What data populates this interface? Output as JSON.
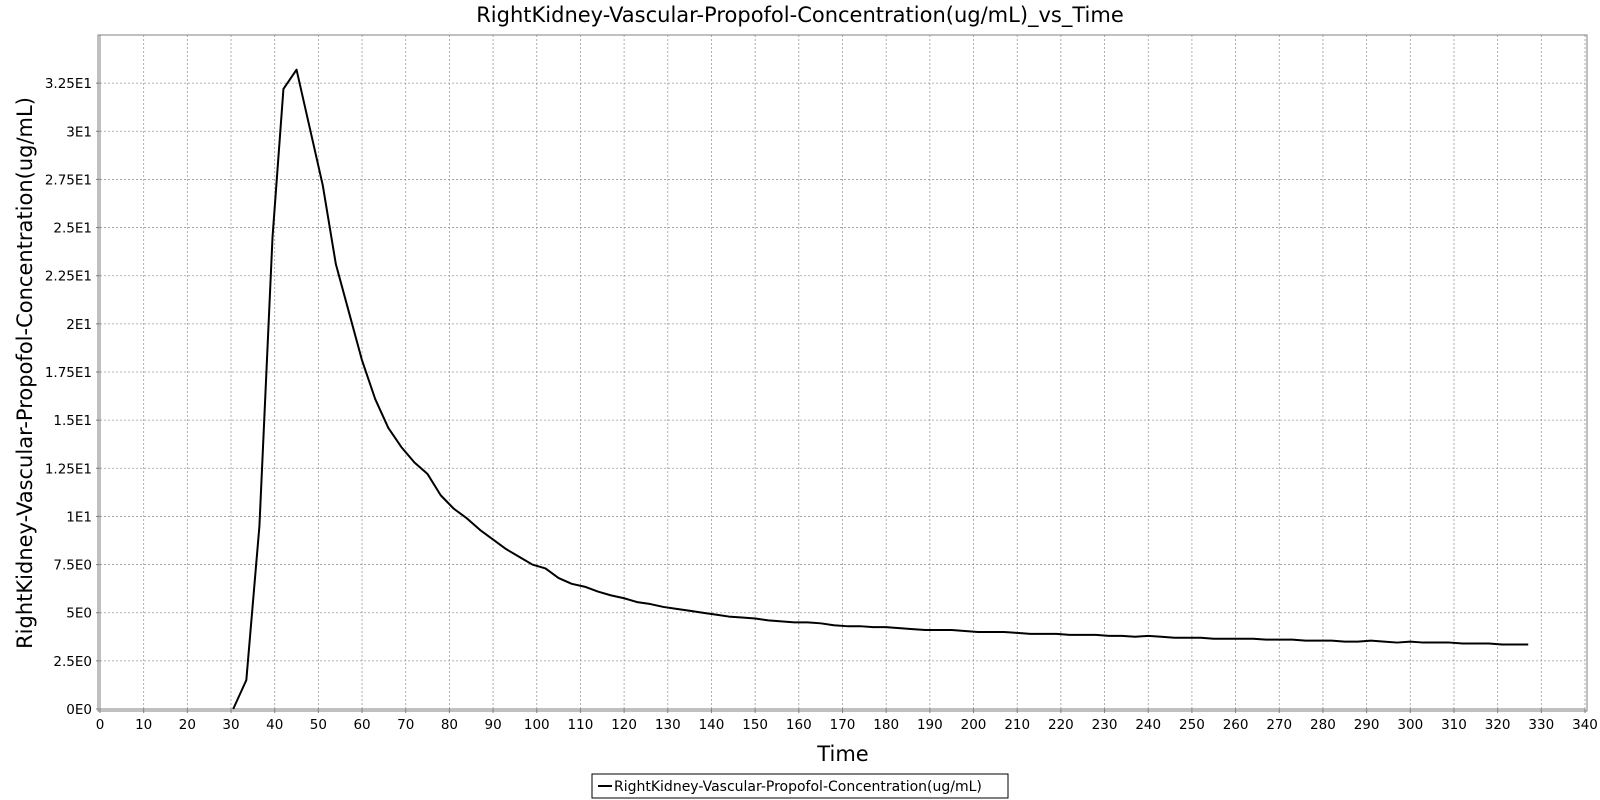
{
  "chart_data": {
    "type": "line",
    "title": "RightKidney-Vascular-Propofol-Concentration(ug/mL)_vs_Time",
    "xlabel": "Time",
    "ylabel": "RightKidney-Vascular-Propofol-Concentration(ug/mL)",
    "xlim": [
      0,
      340
    ],
    "ylim": [
      0,
      35
    ],
    "grid": true,
    "legend_position": "bottom-center",
    "x_ticks": [
      0,
      10,
      20,
      30,
      40,
      50,
      60,
      70,
      80,
      90,
      100,
      110,
      120,
      130,
      140,
      150,
      160,
      170,
      180,
      190,
      200,
      210,
      220,
      230,
      240,
      250,
      260,
      270,
      280,
      290,
      300,
      310,
      320,
      330,
      340
    ],
    "x_tick_labels": [
      "0",
      "10",
      "20",
      "30",
      "40",
      "50",
      "60",
      "70",
      "80",
      "90",
      "100",
      "110",
      "120",
      "130",
      "140",
      "150",
      "160",
      "170",
      "180",
      "190",
      "200",
      "210",
      "220",
      "230",
      "240",
      "250",
      "260",
      "270",
      "280",
      "290",
      "300",
      "310",
      "320",
      "330",
      "340"
    ],
    "y_ticks": [
      0,
      2.5,
      5,
      7.5,
      10,
      12.5,
      15,
      17.5,
      20,
      22.5,
      25,
      27.5,
      30,
      32.5
    ],
    "y_tick_labels": [
      "0E0",
      "2.5E0",
      "5E0",
      "7.5E0",
      "1E1",
      "1.25E1",
      "1.5E1",
      "1.75E1",
      "2E1",
      "2.25E1",
      "2.5E1",
      "2.75E1",
      "3E1",
      "3.25E1"
    ],
    "series": [
      {
        "name": "RightKidney-Vascular-Propofol-Concentration(ug/mL)",
        "color": "#000000",
        "x": [
          30.5,
          33.5,
          36.5,
          39.5,
          42,
          45,
          48,
          51,
          54,
          57,
          60,
          63,
          66,
          69,
          72,
          75,
          78,
          81,
          84,
          87,
          90,
          93,
          96,
          99,
          102,
          105,
          108,
          111,
          114,
          117,
          120,
          123,
          126,
          129,
          132,
          135,
          138,
          141,
          144,
          147,
          150,
          153,
          156,
          159,
          162,
          165,
          168,
          171,
          174,
          177,
          180,
          183,
          186,
          189,
          192,
          195,
          198,
          201,
          204,
          207,
          210,
          213,
          216,
          219,
          222,
          225,
          228,
          231,
          234,
          237,
          240,
          243,
          246,
          249,
          252,
          255,
          258,
          261,
          264,
          267,
          270,
          273,
          276,
          279,
          282,
          285,
          288,
          291,
          294,
          297,
          300,
          303,
          306,
          309,
          312,
          315,
          318,
          321,
          324,
          327
        ],
        "y": [
          0,
          1.5,
          9.5,
          24.5,
          32.2,
          33.2,
          30.2,
          27.2,
          23.1,
          20.6,
          18.1,
          16.1,
          14.6,
          13.6,
          12.8,
          12.2,
          11.1,
          10.4,
          9.9,
          9.3,
          8.8,
          8.3,
          7.9,
          7.5,
          7.3,
          6.8,
          6.5,
          6.35,
          6.1,
          5.9,
          5.75,
          5.55,
          5.45,
          5.3,
          5.2,
          5.1,
          5.0,
          4.9,
          4.8,
          4.75,
          4.7,
          4.6,
          4.55,
          4.5,
          4.5,
          4.45,
          4.35,
          4.3,
          4.3,
          4.25,
          4.25,
          4.2,
          4.15,
          4.1,
          4.1,
          4.1,
          4.05,
          4.0,
          4.0,
          4.0,
          3.95,
          3.9,
          3.9,
          3.9,
          3.85,
          3.85,
          3.85,
          3.8,
          3.8,
          3.75,
          3.8,
          3.75,
          3.7,
          3.7,
          3.7,
          3.65,
          3.65,
          3.65,
          3.65,
          3.6,
          3.6,
          3.6,
          3.55,
          3.55,
          3.55,
          3.5,
          3.5,
          3.55,
          3.5,
          3.45,
          3.5,
          3.45,
          3.45,
          3.45,
          3.4,
          3.4,
          3.4,
          3.35,
          3.35,
          3.35
        ]
      }
    ]
  }
}
